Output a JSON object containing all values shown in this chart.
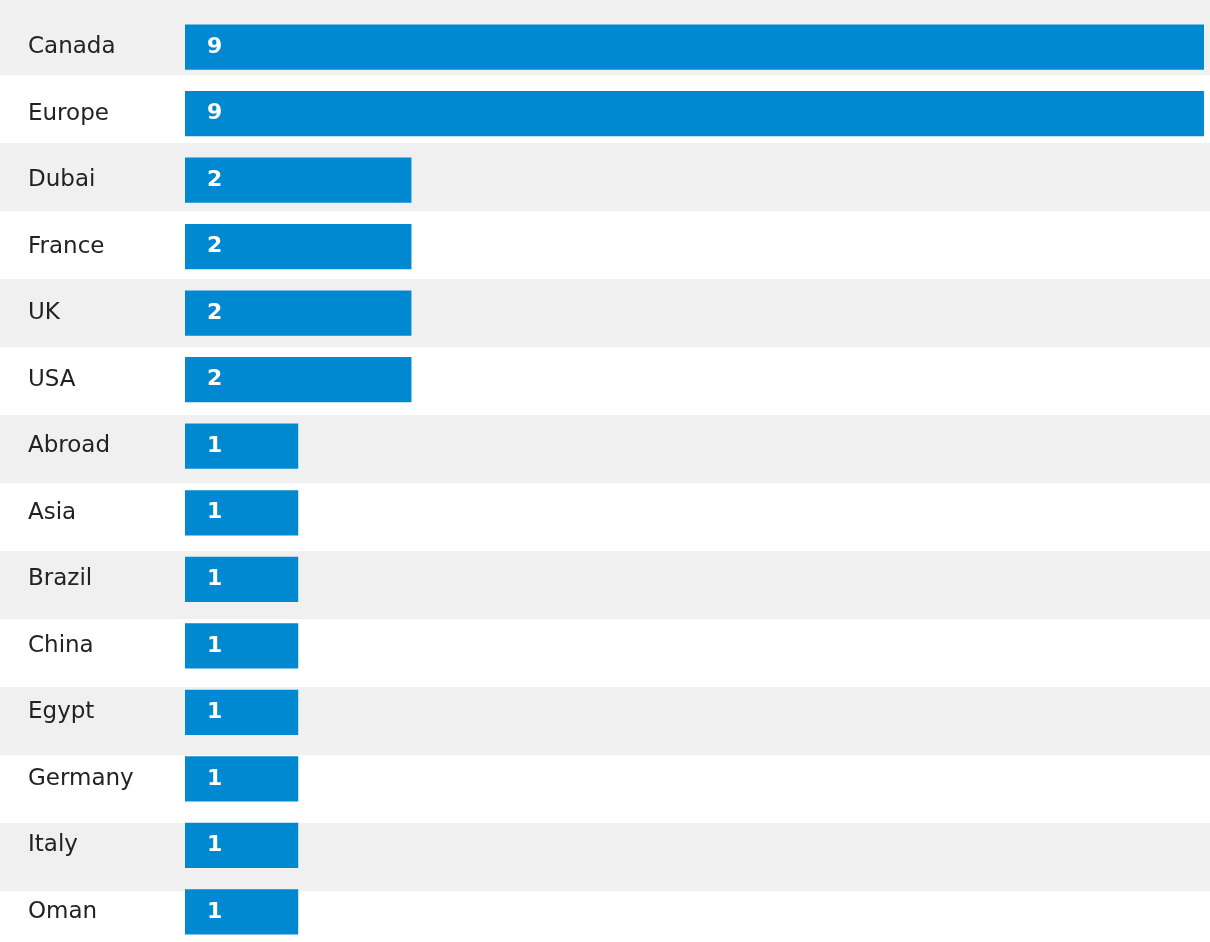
{
  "chart_data": {
    "type": "bar",
    "orientation": "horizontal",
    "categories": [
      "Canada",
      "Europe",
      "Dubai",
      "France",
      "UK",
      "USA",
      "Abroad",
      "Asia",
      "Brazil",
      "China",
      "Egypt",
      "Germany",
      "Italy",
      "Oman"
    ],
    "values": [
      9,
      9,
      2,
      2,
      2,
      2,
      1,
      1,
      1,
      1,
      1,
      1,
      1,
      1
    ],
    "color": "#0088d1",
    "xlim": [
      0,
      9
    ],
    "data_labels": true,
    "tick_labels": "y"
  }
}
